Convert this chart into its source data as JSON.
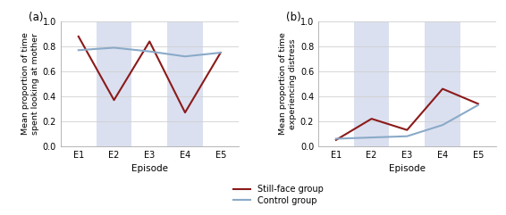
{
  "panel_a": {
    "title": "(a)",
    "ylabel": "Mean proportion of time\nspent looking at mother",
    "xlabel": "Episode",
    "x": [
      1,
      2,
      3,
      4,
      5
    ],
    "xtick_labels": [
      "E1",
      "E2",
      "E3",
      "E4",
      "E5"
    ],
    "still_face": [
      0.88,
      0.37,
      0.84,
      0.27,
      0.75
    ],
    "control": [
      0.77,
      0.79,
      0.76,
      0.72,
      0.75
    ],
    "ylim": [
      0.0,
      1.0
    ],
    "yticks": [
      0.0,
      0.2,
      0.4,
      0.6,
      0.8,
      1.0
    ],
    "shade_episodes": [
      2,
      4
    ]
  },
  "panel_b": {
    "title": "(b)",
    "ylabel": "Mean proportion of time\nexperiencing distress",
    "xlabel": "Episode",
    "x": [
      1,
      2,
      3,
      4,
      5
    ],
    "xtick_labels": [
      "E1",
      "E2",
      "E3",
      "E4",
      "E5"
    ],
    "still_face": [
      0.05,
      0.22,
      0.13,
      0.46,
      0.34
    ],
    "control": [
      0.06,
      0.07,
      0.08,
      0.17,
      0.33
    ],
    "ylim": [
      0.0,
      1.0
    ],
    "yticks": [
      0.0,
      0.2,
      0.4,
      0.6,
      0.8,
      1.0
    ],
    "shade_episodes": [
      2,
      4
    ]
  },
  "still_face_color": "#8B1A1A",
  "control_color": "#8AAAC8",
  "shade_color": "#C8D0E8",
  "shade_alpha": 0.65,
  "legend_labels": [
    "Still-face group",
    "Control group"
  ],
  "line_width": 1.5,
  "background_color": "#ffffff",
  "grid_color": "#d0d0d0"
}
